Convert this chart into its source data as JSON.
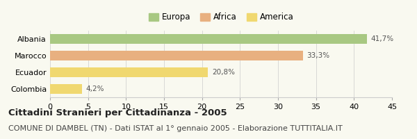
{
  "categories": [
    "Albania",
    "Marocco",
    "Ecuador",
    "Colombia"
  ],
  "values": [
    41.7,
    33.3,
    20.8,
    4.2
  ],
  "labels": [
    "41,7%",
    "33,3%",
    "20,8%",
    "4,2%"
  ],
  "bar_colors": [
    "#a8c882",
    "#e8b080",
    "#f0d870",
    "#f0d870"
  ],
  "legend_entries": [
    "Europa",
    "Africa",
    "America"
  ],
  "legend_colors": [
    "#a8c882",
    "#e8b080",
    "#f0d870"
  ],
  "xlim": [
    0,
    45
  ],
  "xticks": [
    0,
    5,
    10,
    15,
    20,
    25,
    30,
    35,
    40,
    45
  ],
  "title": "Cittadini Stranieri per Cittadinanza - 2005",
  "subtitle": "COMUNE DI DAMBEL (TN) - Dati ISTAT al 1° gennaio 2005 - Elaborazione TUTTITALIA.IT",
  "bg_color": "#f9f9f0",
  "title_fontsize": 9.5,
  "subtitle_fontsize": 8,
  "label_fontsize": 7.5,
  "tick_fontsize": 8,
  "legend_fontsize": 8.5,
  "bar_height": 0.55
}
